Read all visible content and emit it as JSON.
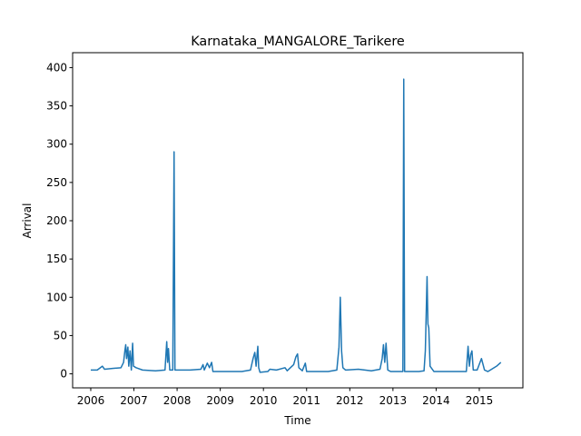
{
  "chart_data": {
    "type": "line",
    "title": "Karnataka_MANGALORE_Tarikere",
    "xlabel": "Time",
    "ylabel": "Arrival",
    "x": [
      2006.0,
      2006.15,
      2006.27,
      2006.32,
      2006.5,
      2006.7,
      2006.76,
      2006.79,
      2006.81,
      2006.83,
      2006.86,
      2006.88,
      2006.91,
      2006.94,
      2006.97,
      2006.99,
      2007.05,
      2007.2,
      2007.5,
      2007.72,
      2007.76,
      2007.78,
      2007.8,
      2007.83,
      2007.9,
      2007.93,
      2007.95,
      2008.3,
      2008.55,
      2008.6,
      2008.63,
      2008.7,
      2008.75,
      2008.8,
      2008.83,
      2009.0,
      2009.5,
      2009.7,
      2009.76,
      2009.8,
      2009.83,
      2009.87,
      2009.89,
      2009.92,
      2010.1,
      2010.15,
      2010.3,
      2010.5,
      2010.55,
      2010.7,
      2010.75,
      2010.79,
      2010.82,
      2010.9,
      2010.97,
      2011.0,
      2011.5,
      2011.7,
      2011.75,
      2011.78,
      2011.81,
      2011.84,
      2011.9,
      2012.2,
      2012.5,
      2012.7,
      2012.75,
      2012.78,
      2012.81,
      2012.84,
      2012.88,
      2012.95,
      2013.2,
      2013.23,
      2013.25,
      2013.27,
      2013.6,
      2013.72,
      2013.75,
      2013.79,
      2013.81,
      2013.83,
      2013.86,
      2013.95,
      2014.3,
      2014.7,
      2014.74,
      2014.77,
      2014.8,
      2014.83,
      2014.86,
      2014.95,
      2015.05,
      2015.12,
      2015.2,
      2015.4,
      2015.5
    ],
    "series": [
      {
        "name": "Arrival",
        "color": "#1f77b4",
        "values": [
          5,
          5,
          10,
          6,
          7,
          8,
          15,
          30,
          38,
          20,
          35,
          10,
          30,
          5,
          40,
          10,
          8,
          5,
          4,
          5,
          42,
          15,
          33,
          5,
          5,
          290,
          5,
          5,
          6,
          12,
          5,
          14,
          8,
          15,
          3,
          3,
          3,
          5,
          20,
          28,
          10,
          36,
          8,
          2,
          3,
          6,
          5,
          8,
          4,
          12,
          22,
          26,
          8,
          4,
          14,
          3,
          3,
          5,
          35,
          100,
          30,
          8,
          5,
          6,
          4,
          6,
          20,
          38,
          15,
          40,
          5,
          3,
          3,
          3,
          385,
          3,
          3,
          4,
          30,
          127,
          65,
          60,
          10,
          3,
          3,
          3,
          36,
          10,
          25,
          30,
          5,
          5,
          20,
          5,
          3,
          10,
          15
        ]
      }
    ],
    "xlim": [
      2005.58,
      2016.01
    ],
    "xticks": [
      2006,
      2007,
      2008,
      2009,
      2010,
      2011,
      2012,
      2013,
      2014,
      2015
    ],
    "ylim": [
      -18.3,
      419.5
    ],
    "yticks": [
      0,
      50,
      100,
      150,
      200,
      250,
      300,
      350,
      400
    ]
  }
}
